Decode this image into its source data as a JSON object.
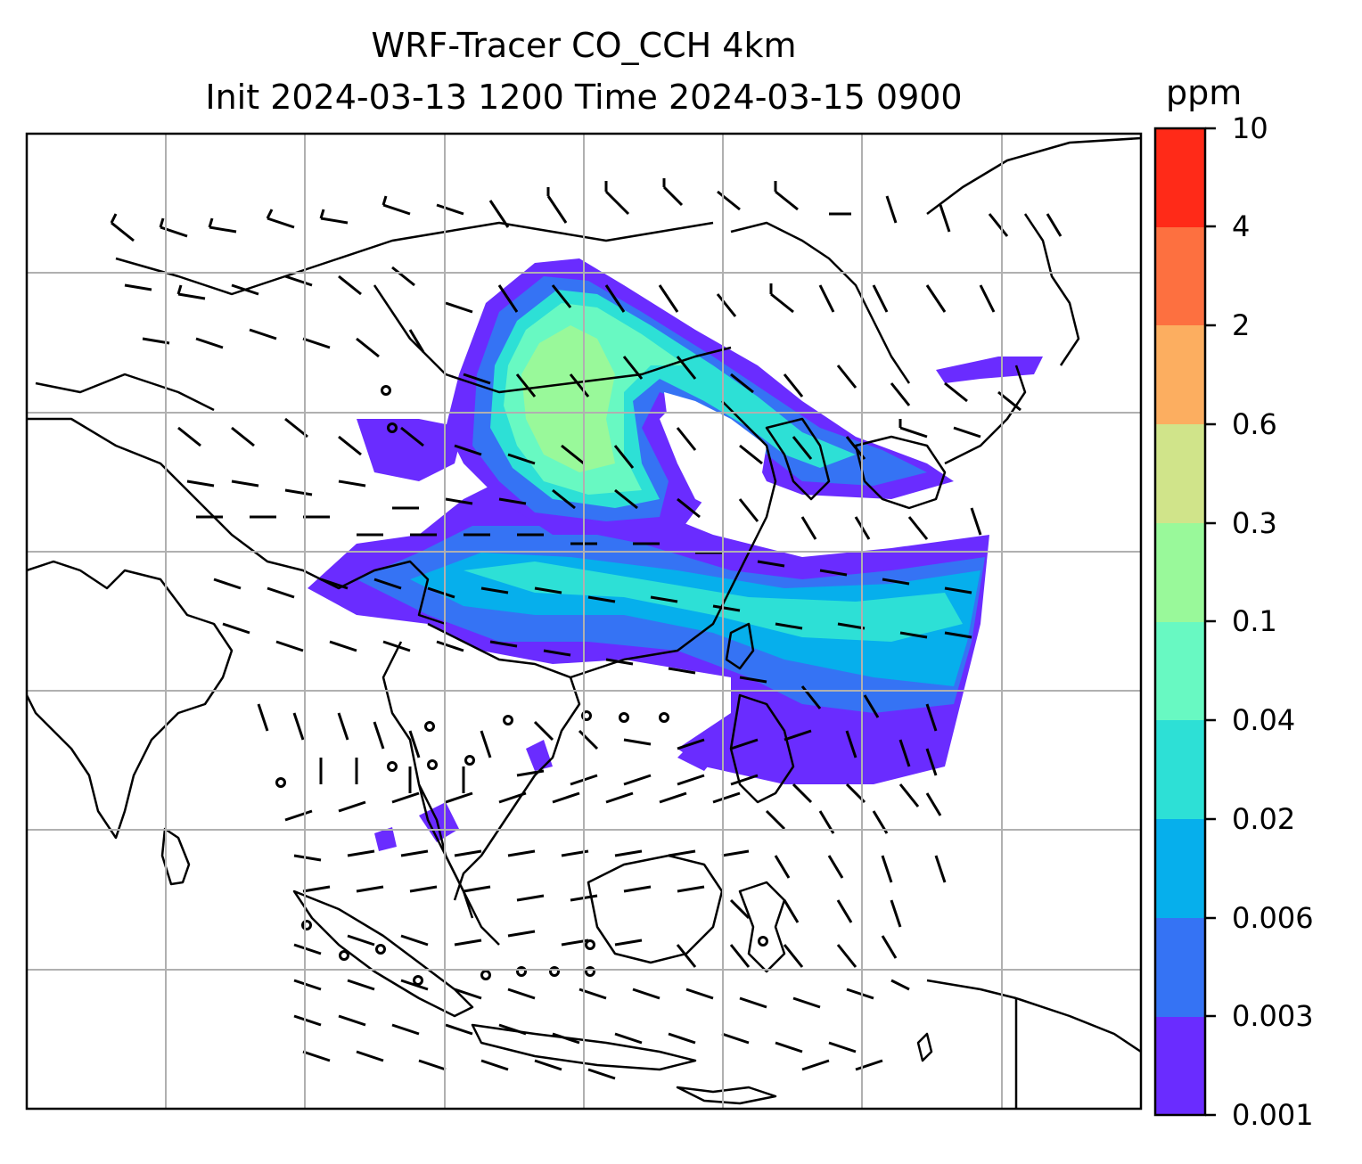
{
  "figure": {
    "title_line1": "WRF-Tracer CO_CCH 4km",
    "title_line2": "Init 2024-03-13 1200 Time 2024-03-15 0900"
  },
  "colorbar": {
    "units": "ppm",
    "levels": [
      "0.001",
      "0.003",
      "0.006",
      "0.02",
      "0.04",
      "0.1",
      "0.3",
      "0.6",
      "2",
      "4",
      "10"
    ],
    "colors": [
      "#6a2cff",
      "#3573f4",
      "#06afec",
      "#2de0d6",
      "#68f9c2",
      "#99f99a",
      "#d0e48a",
      "#fcae60",
      "#fd7040",
      "#ff2a18"
    ]
  },
  "map": {
    "background": "#ffffff",
    "coastline_color": "#000000",
    "grid_color": "#b0b0b0",
    "wind_barbs": "black"
  }
}
